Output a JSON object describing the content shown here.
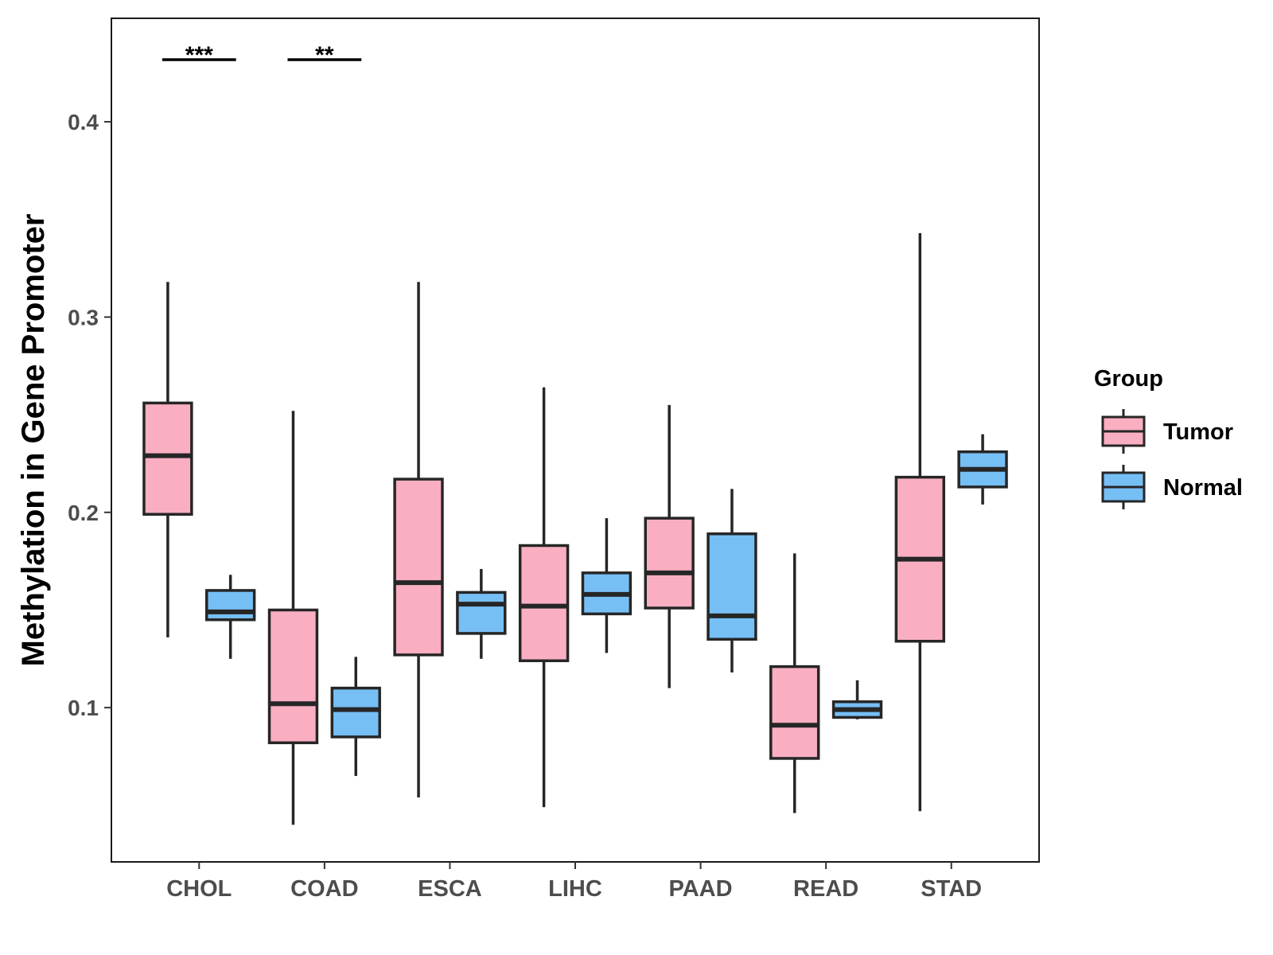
{
  "chart_data": {
    "type": "boxplot",
    "title": "",
    "xlabel": "",
    "ylabel": "Methylation in Gene Promoter",
    "ylim": [
      0.021,
      0.453
    ],
    "yticks": [
      0.1,
      0.2,
      0.3,
      0.4
    ],
    "ytick_labels": [
      "0.1",
      "0.2",
      "0.3",
      "0.4"
    ],
    "categories": [
      "CHOL",
      "COAD",
      "ESCA",
      "LIHC",
      "PAAD",
      "READ",
      "STAD"
    ],
    "legend": {
      "title": "Group",
      "position": "right",
      "items": [
        {
          "label": "Tumor",
          "color": "#F9AFC1"
        },
        {
          "label": "Normal",
          "color": "#76BFF5"
        }
      ]
    },
    "series": [
      {
        "name": "Tumor",
        "color": "#F9AFC1",
        "boxes": [
          {
            "min": 0.136,
            "q1": 0.199,
            "median": 0.229,
            "q3": 0.256,
            "max": 0.318
          },
          {
            "min": 0.04,
            "q1": 0.082,
            "median": 0.102,
            "q3": 0.15,
            "max": 0.252
          },
          {
            "min": 0.054,
            "q1": 0.127,
            "median": 0.164,
            "q3": 0.217,
            "max": 0.318
          },
          {
            "min": 0.049,
            "q1": 0.124,
            "median": 0.152,
            "q3": 0.183,
            "max": 0.264
          },
          {
            "min": 0.11,
            "q1": 0.151,
            "median": 0.169,
            "q3": 0.197,
            "max": 0.255
          },
          {
            "min": 0.046,
            "q1": 0.074,
            "median": 0.091,
            "q3": 0.121,
            "max": 0.179
          },
          {
            "min": 0.047,
            "q1": 0.134,
            "median": 0.176,
            "q3": 0.218,
            "max": 0.343
          }
        ]
      },
      {
        "name": "Normal",
        "color": "#76BFF5",
        "boxes": [
          {
            "min": 0.125,
            "q1": 0.145,
            "median": 0.149,
            "q3": 0.16,
            "max": 0.168
          },
          {
            "min": 0.065,
            "q1": 0.085,
            "median": 0.099,
            "q3": 0.11,
            "max": 0.126
          },
          {
            "min": 0.125,
            "q1": 0.138,
            "median": 0.153,
            "q3": 0.159,
            "max": 0.171
          },
          {
            "min": 0.128,
            "q1": 0.148,
            "median": 0.158,
            "q3": 0.169,
            "max": 0.197
          },
          {
            "min": 0.118,
            "q1": 0.135,
            "median": 0.147,
            "q3": 0.189,
            "max": 0.212
          },
          {
            "min": 0.094,
            "q1": 0.095,
            "median": 0.099,
            "q3": 0.103,
            "max": 0.114
          },
          {
            "min": 0.204,
            "q1": 0.213,
            "median": 0.222,
            "q3": 0.231,
            "max": 0.24
          }
        ]
      }
    ],
    "significance": [
      {
        "category": "CHOL",
        "label": "***"
      },
      {
        "category": "COAD",
        "label": "**"
      }
    ]
  }
}
